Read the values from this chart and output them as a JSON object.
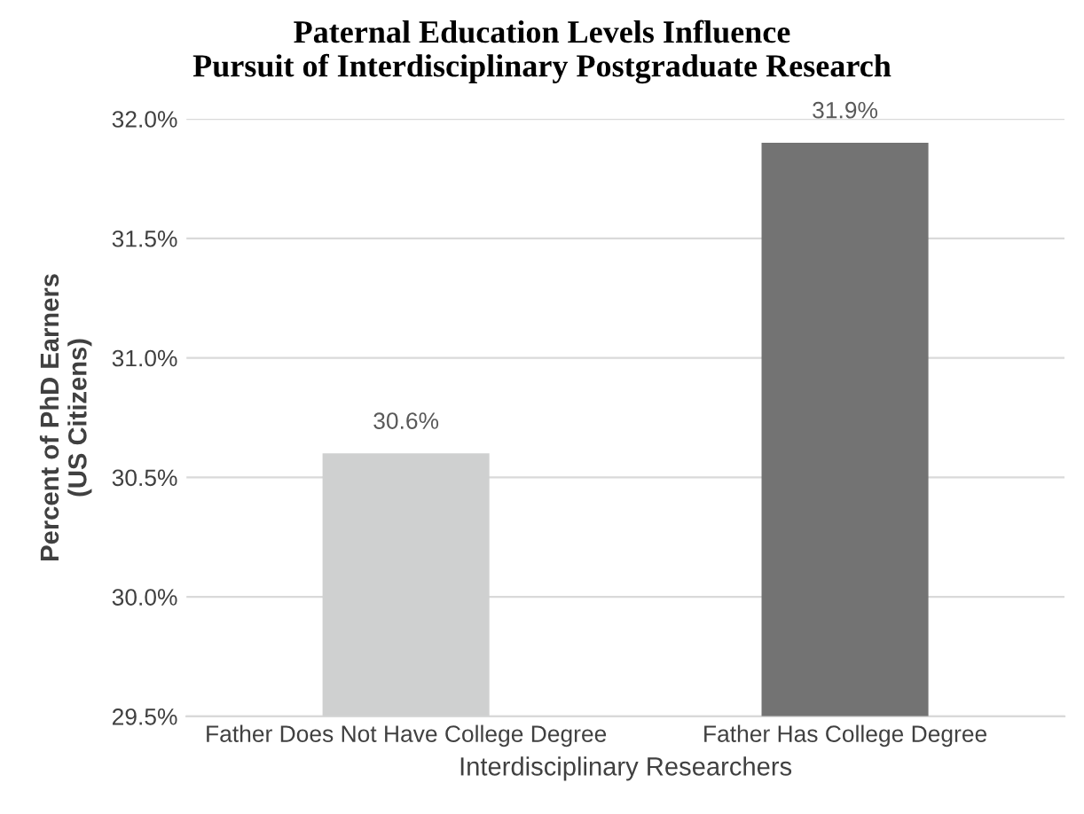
{
  "chart_data": {
    "type": "bar",
    "title": "Paternal Education Levels Influence\nPursuit of Interdisciplinary Postgraduate Research",
    "xlabel": "Interdisciplinary Researchers",
    "ylabel": "Percent of PhD Earners\n(US Citizens)",
    "categories": [
      "Father Does Not Have College Degree",
      "Father Has College Degree"
    ],
    "values": [
      30.6,
      31.9
    ],
    "colors": [
      "#cfd0d0",
      "#737373"
    ],
    "value_labels": [
      "30.6%",
      "31.9%"
    ],
    "ylim": [
      29.5,
      32.0
    ],
    "yticks": [
      {
        "value": 29.5,
        "label": "29.5%"
      },
      {
        "value": 30.0,
        "label": "30.0%"
      },
      {
        "value": 30.5,
        "label": "30.5%"
      },
      {
        "value": 31.0,
        "label": "31.0%"
      },
      {
        "value": 31.5,
        "label": "31.5%"
      },
      {
        "value": 32.0,
        "label": "32.0%"
      }
    ],
    "grid": "y",
    "legend": false
  }
}
